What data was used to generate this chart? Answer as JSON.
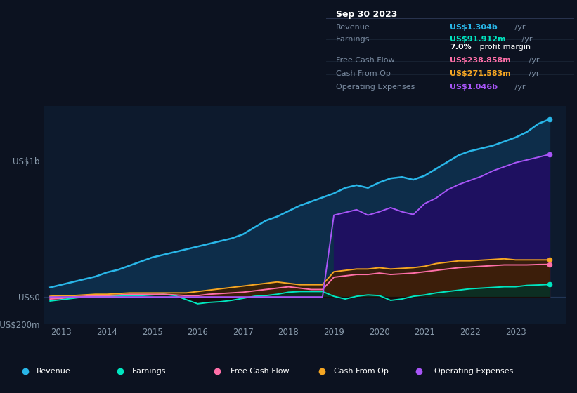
{
  "bg_color": "#0c1220",
  "plot_bg_color": "#0d1a2d",
  "grid_color": "#1e3050",
  "years": [
    2012.75,
    2013.0,
    2013.25,
    2013.5,
    2013.75,
    2014.0,
    2014.25,
    2014.5,
    2014.75,
    2015.0,
    2015.25,
    2015.5,
    2015.75,
    2016.0,
    2016.25,
    2016.5,
    2016.75,
    2017.0,
    2017.25,
    2017.5,
    2017.75,
    2018.0,
    2018.25,
    2018.5,
    2018.75,
    2019.0,
    2019.25,
    2019.5,
    2019.75,
    2020.0,
    2020.25,
    2020.5,
    2020.75,
    2021.0,
    2021.25,
    2021.5,
    2021.75,
    2022.0,
    2022.25,
    2022.5,
    2022.75,
    2023.0,
    2023.25,
    2023.5,
    2023.75
  ],
  "revenue": [
    0.07,
    0.09,
    0.11,
    0.13,
    0.15,
    0.18,
    0.2,
    0.23,
    0.26,
    0.29,
    0.31,
    0.33,
    0.35,
    0.37,
    0.39,
    0.41,
    0.43,
    0.46,
    0.51,
    0.56,
    0.59,
    0.63,
    0.67,
    0.7,
    0.73,
    0.76,
    0.8,
    0.82,
    0.8,
    0.84,
    0.87,
    0.88,
    0.86,
    0.89,
    0.94,
    0.99,
    1.04,
    1.07,
    1.09,
    1.11,
    1.14,
    1.17,
    1.21,
    1.27,
    1.304
  ],
  "earnings": [
    -0.03,
    -0.02,
    -0.01,
    0.0,
    0.0,
    0.005,
    0.008,
    0.01,
    0.01,
    0.015,
    0.02,
    0.01,
    -0.02,
    -0.05,
    -0.04,
    -0.035,
    -0.025,
    -0.01,
    0.005,
    0.01,
    0.02,
    0.035,
    0.04,
    0.04,
    0.04,
    0.005,
    -0.015,
    0.005,
    0.015,
    0.01,
    -0.025,
    -0.015,
    0.005,
    0.015,
    0.03,
    0.04,
    0.05,
    0.06,
    0.065,
    0.07,
    0.075,
    0.075,
    0.085,
    0.088,
    0.092
  ],
  "free_cash_flow": [
    -0.015,
    -0.01,
    0.0,
    0.005,
    0.01,
    0.01,
    0.015,
    0.02,
    0.02,
    0.02,
    0.02,
    0.015,
    0.01,
    0.01,
    0.02,
    0.025,
    0.03,
    0.035,
    0.045,
    0.055,
    0.065,
    0.075,
    0.065,
    0.055,
    0.055,
    0.145,
    0.155,
    0.165,
    0.165,
    0.175,
    0.165,
    0.17,
    0.175,
    0.185,
    0.195,
    0.205,
    0.215,
    0.22,
    0.225,
    0.23,
    0.235,
    0.235,
    0.235,
    0.238,
    0.239
  ],
  "cash_from_op": [
    0.005,
    0.01,
    0.01,
    0.015,
    0.02,
    0.02,
    0.025,
    0.03,
    0.03,
    0.03,
    0.03,
    0.03,
    0.03,
    0.04,
    0.05,
    0.06,
    0.07,
    0.08,
    0.09,
    0.1,
    0.11,
    0.1,
    0.09,
    0.09,
    0.09,
    0.185,
    0.195,
    0.205,
    0.205,
    0.215,
    0.205,
    0.21,
    0.215,
    0.225,
    0.245,
    0.255,
    0.265,
    0.265,
    0.27,
    0.275,
    0.28,
    0.272,
    0.272,
    0.272,
    0.272
  ],
  "op_expenses": [
    0.0,
    0.0,
    0.0,
    0.0,
    0.0,
    0.0,
    0.0,
    0.0,
    0.0,
    0.0,
    0.0,
    0.0,
    0.0,
    0.0,
    0.0,
    0.0,
    0.0,
    0.0,
    0.0,
    0.0,
    0.0,
    0.0,
    0.0,
    0.0,
    0.0,
    0.6,
    0.62,
    0.64,
    0.6,
    0.625,
    0.655,
    0.625,
    0.605,
    0.685,
    0.725,
    0.785,
    0.825,
    0.855,
    0.885,
    0.925,
    0.955,
    0.985,
    1.005,
    1.025,
    1.046
  ],
  "colors": {
    "revenue": "#29b6e8",
    "earnings": "#00e5c0",
    "free_cash_flow": "#ff6fa8",
    "cash_from_op": "#f5a623",
    "op_expenses": "#a855f7"
  },
  "fill_colors": {
    "revenue": "#0d2d4a",
    "op_expenses": "#1e1060",
    "free_cash_flow": "#5a1535",
    "cash_from_op": "#3a2005",
    "earnings_pos": "#073025",
    "earnings_neg": "#1a0a0a"
  },
  "ylim": [
    -0.2,
    1.4
  ],
  "xlim": [
    2012.6,
    2024.1
  ],
  "yticks_labels": [
    "US$1b",
    "US$0",
    "-US$200m"
  ],
  "yticks_values": [
    1.0,
    0.0,
    -0.2
  ],
  "xticks": [
    2013,
    2014,
    2015,
    2016,
    2017,
    2018,
    2019,
    2020,
    2021,
    2022,
    2023
  ],
  "infobox": {
    "title": "Sep 30 2023",
    "rows": [
      {
        "label": "Revenue",
        "value": "US$1.304b",
        "color": "#29b6e8"
      },
      {
        "label": "Earnings",
        "value": "US$91.912m",
        "color": "#00e5c0"
      },
      {
        "label": "",
        "value": "7.0%",
        "value2": " profit margin",
        "color": "#ffffff"
      },
      {
        "label": "Free Cash Flow",
        "value": "US$238.858m",
        "color": "#ff6fa8"
      },
      {
        "label": "Cash From Op",
        "value": "US$271.583m",
        "color": "#f5a623"
      },
      {
        "label": "Operating Expenses",
        "value": "US$1.046b",
        "color": "#a855f7"
      }
    ]
  },
  "legend_items": [
    {
      "label": "Revenue",
      "color": "#29b6e8"
    },
    {
      "label": "Earnings",
      "color": "#00e5c0"
    },
    {
      "label": "Free Cash Flow",
      "color": "#ff6fa8"
    },
    {
      "label": "Cash From Op",
      "color": "#f5a623"
    },
    {
      "label": "Operating Expenses",
      "color": "#a855f7"
    }
  ]
}
